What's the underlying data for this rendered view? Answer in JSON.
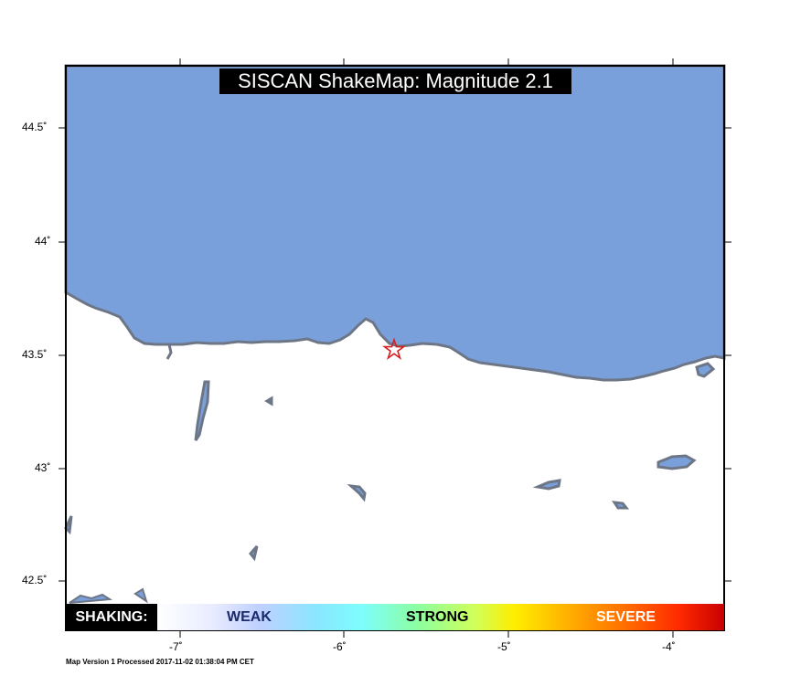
{
  "title": "SISCAN ShakeMap: Magnitude 2.1",
  "lat_ticks": [
    "44.5˚",
    "44˚",
    "43.5˚",
    "43˚",
    "42.5˚"
  ],
  "lon_ticks": [
    "-7˚",
    "-6˚",
    "-5˚",
    "-4˚"
  ],
  "legend": {
    "label": "SHAKING:",
    "weak": "WEAK",
    "strong": "STRONG",
    "severe": "SEVERE"
  },
  "footer": "Map Version 1 Processed 2017-11-02 01:38:04 PM CET",
  "colors": {
    "sea": "#7aa0dc",
    "coast": "#6d7686",
    "epicenter": "#d42020"
  },
  "epicenter_icon": "star-icon"
}
